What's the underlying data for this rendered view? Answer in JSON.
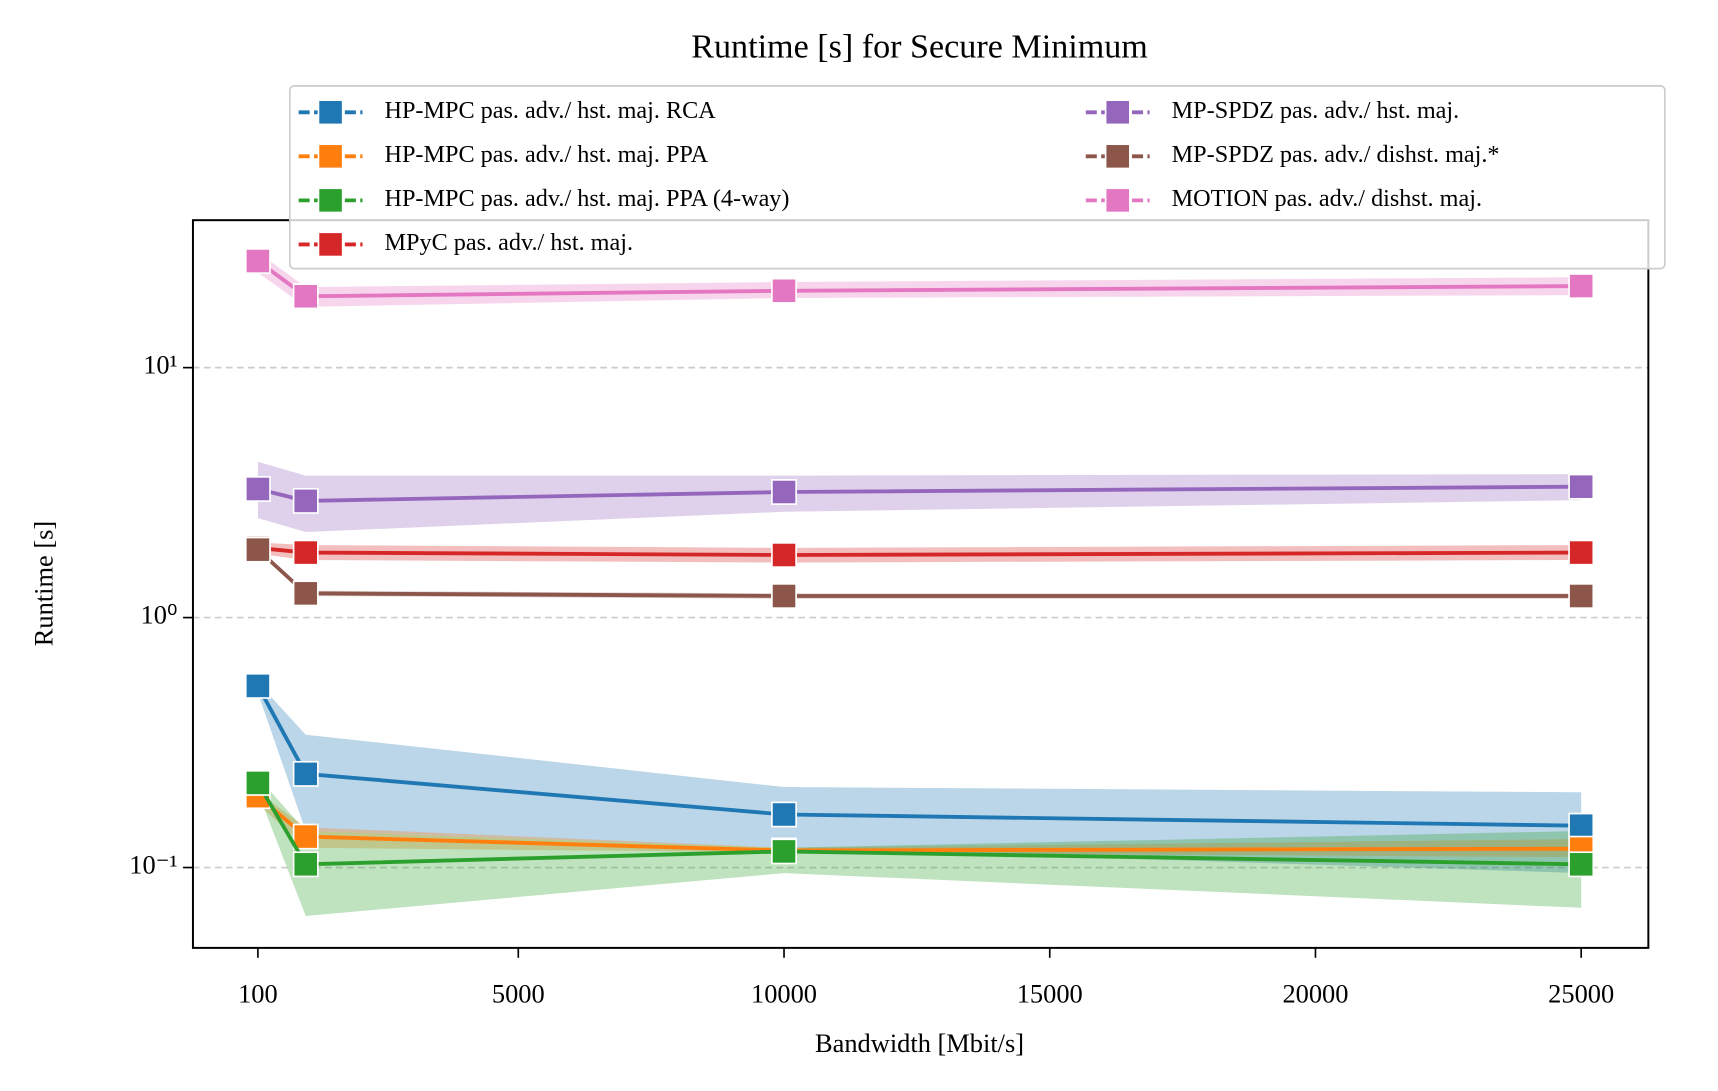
{
  "chart_data": {
    "type": "line",
    "title": "Runtime [s] for Secure Minimum",
    "x_label": "Bandwidth [Mbit/s]",
    "y_label": "Runtime [s]",
    "x": [
      100,
      1000,
      10000,
      25000
    ],
    "xlim": [
      -1122,
      26264
    ],
    "xticks": [
      100,
      5000,
      10000,
      15000,
      20000,
      25000
    ],
    "ylim": [
      0.0477,
      38.9
    ],
    "yticks": [
      {
        "value": 0.1,
        "label": "10⁻¹"
      },
      {
        "value": 1,
        "label": "10⁰"
      },
      {
        "value": 10,
        "label": "10¹"
      }
    ],
    "y_scale": "log",
    "grid": "y",
    "legend": "upper center",
    "series": [
      {
        "name": "HP-MPC pas. adv./ hst. maj. RCA",
        "color": "#1f77b4",
        "values": [
          0.533,
          0.237,
          0.163,
          0.147
        ],
        "upper": [
          0.55,
          0.34,
          0.21,
          0.2
        ],
        "lower": [
          0.5,
          0.14,
          0.12,
          0.095
        ]
      },
      {
        "name": "HP-MPC pas. adv./ hst. maj. PPA",
        "color": "#ff7f0e",
        "values": [
          0.193,
          0.133,
          0.117,
          0.119
        ],
        "upper": [
          0.2,
          0.145,
          0.12,
          0.13
        ],
        "lower": [
          0.18,
          0.12,
          0.115,
          0.11
        ]
      },
      {
        "name": "HP-MPC pas. adv./ hst. maj. PPA (4-way)",
        "color": "#2ca02c",
        "values": [
          0.218,
          0.103,
          0.116,
          0.103
        ],
        "upper": [
          0.23,
          0.14,
          0.12,
          0.14
        ],
        "lower": [
          0.2,
          0.064,
          0.095,
          0.069
        ]
      },
      {
        "name": "MPyC pas. adv./ hst. maj.",
        "color": "#d62728",
        "values": [
          1.9,
          1.82,
          1.78,
          1.82
        ],
        "upper": [
          2.0,
          1.95,
          1.9,
          1.95
        ],
        "lower": [
          1.8,
          1.7,
          1.66,
          1.7
        ]
      },
      {
        "name": "MP-SPDZ pas. adv./ hst. maj.",
        "color": "#9467bd",
        "values": [
          3.27,
          2.93,
          3.18,
          3.34
        ],
        "upper": [
          4.2,
          3.7,
          3.7,
          3.75
        ],
        "lower": [
          2.5,
          2.2,
          2.65,
          2.95
        ]
      },
      {
        "name": "MP-SPDZ pas. adv./ dishst. maj.*",
        "color": "#8c564b",
        "values": [
          1.87,
          1.25,
          1.22,
          1.22
        ],
        "upper": [
          1.9,
          1.28,
          1.25,
          1.25
        ],
        "lower": [
          1.84,
          1.22,
          1.19,
          1.19
        ]
      },
      {
        "name": "MOTION pas. adv./ dishst. maj.",
        "color": "#e377c2",
        "values": [
          26.7,
          19.3,
          20.3,
          21.2
        ],
        "upper": [
          29,
          21,
          22,
          23
        ],
        "lower": [
          24,
          17.5,
          19,
          19.5
        ]
      }
    ]
  }
}
